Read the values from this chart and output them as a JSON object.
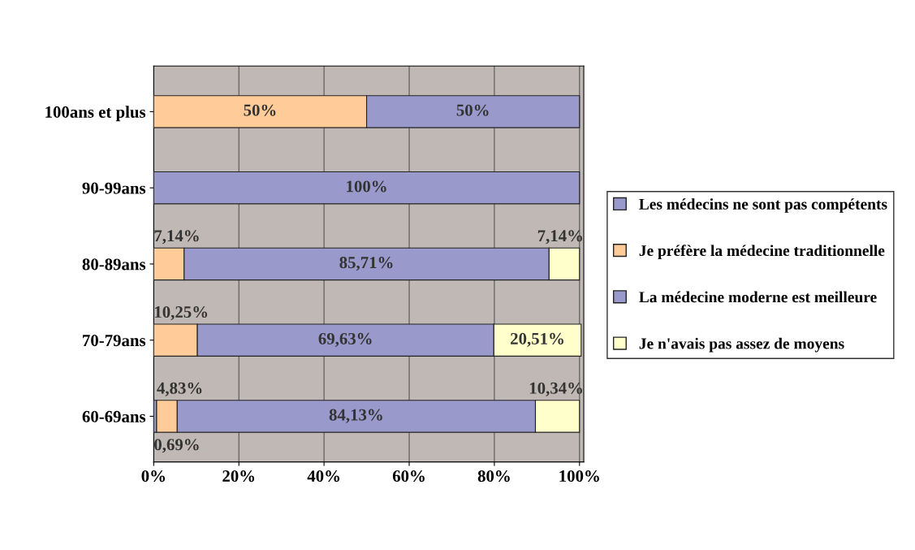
{
  "chart_data": {
    "type": "bar",
    "orientation": "horizontal",
    "stacked": true,
    "categories": [
      "100ans et plus",
      "90-99ans",
      "80-89ans",
      "70-79ans",
      "60-69ans"
    ],
    "series": [
      {
        "name": "Les médecins ne sont pas compétents",
        "color": "#9999cc",
        "values": [
          null,
          null,
          null,
          null,
          0.69
        ],
        "value_labels": [
          null,
          null,
          null,
          null,
          "0,69%"
        ]
      },
      {
        "name": "Je préfère la médecine traditionnelle",
        "color": "#ffcc99",
        "values": [
          50,
          null,
          7.14,
          10.25,
          4.83
        ],
        "value_labels": [
          "50%",
          null,
          "7,14%",
          "10,25%",
          "4,83%"
        ]
      },
      {
        "name": "La médecine moderne est meilleure",
        "color": "#9999cc",
        "values": [
          50,
          100,
          85.71,
          69.63,
          84.13
        ],
        "value_labels": [
          "50%",
          "100%",
          "85,71%",
          "69,63%",
          "84,13%"
        ]
      },
      {
        "name": "Je n'avais pas assez de moyens",
        "color": "#ffffcc",
        "values": [
          null,
          null,
          7.14,
          20.51,
          10.34
        ],
        "value_labels": [
          null,
          null,
          "7,14%",
          "20,51%",
          "10,34%"
        ]
      }
    ],
    "xlim": [
      0,
      101
    ],
    "xticks": [
      {
        "value": 0,
        "label": "0%"
      },
      {
        "value": 20,
        "label": "20%"
      },
      {
        "value": 40,
        "label": "40%"
      },
      {
        "value": 60,
        "label": "60%"
      },
      {
        "value": 80,
        "label": "80%"
      },
      {
        "value": 100,
        "label": "100%"
      }
    ],
    "grid": "x",
    "legend": "right"
  }
}
